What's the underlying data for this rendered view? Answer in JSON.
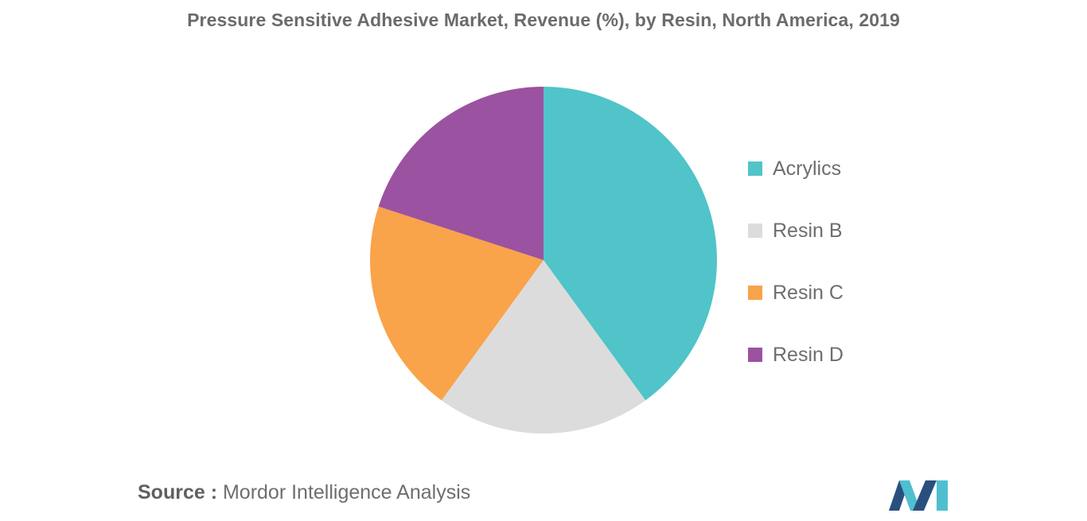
{
  "chart_data": {
    "type": "pie",
    "title": "Pressure Sensitive Adhesive Market, Revenue (%), by Resin, North America, 2019",
    "slices": [
      {
        "label": "Acrylics",
        "value": 40,
        "color": "#50c4c9"
      },
      {
        "label": "Resin B",
        "value": 20,
        "color": "#dcdcdc"
      },
      {
        "label": "Resin C",
        "value": 20,
        "color": "#f9a34b"
      },
      {
        "label": "Resin D",
        "value": 20,
        "color": "#9b52a0"
      }
    ],
    "legend_placement": "right"
  },
  "source": {
    "prefix": "Source :",
    "text": " Mordor Intelligence Analysis"
  },
  "logo": {
    "icon": "mordor-intelligence-logo-icon",
    "colors": [
      "#2a4f7e",
      "#4fbfd0"
    ]
  }
}
